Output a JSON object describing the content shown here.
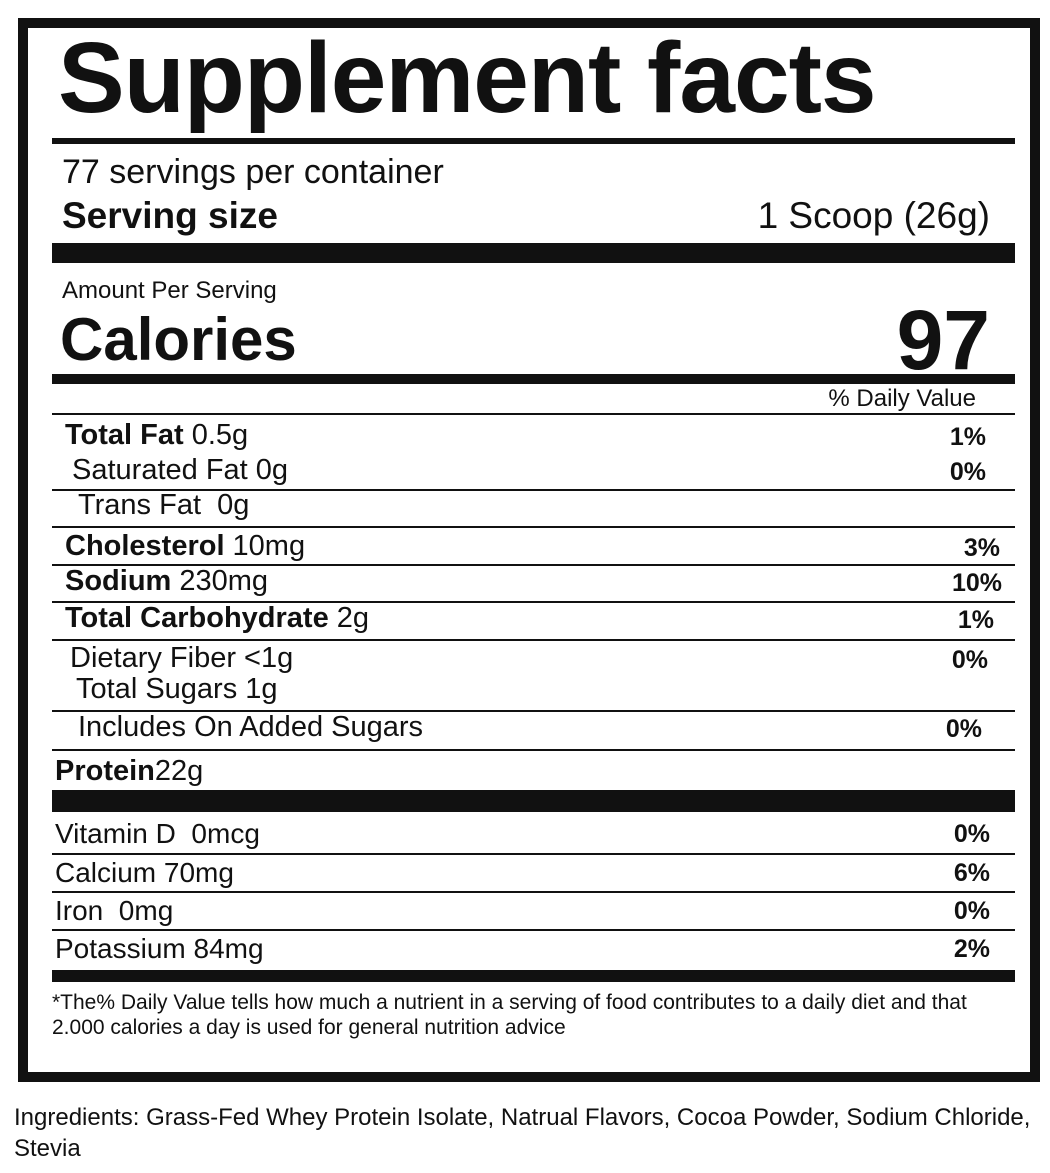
{
  "header": {
    "title": "Supplement facts",
    "servings": "77 servings per container",
    "serving_size_label": "Serving size",
    "serving_size_value": "1 Scoop (26g)"
  },
  "calories": {
    "amount_label": "Amount Per Serving",
    "label": "Calories",
    "value": "97"
  },
  "daily_value_header": "% Daily Value",
  "nutrients": [
    {
      "label": "Total Fat",
      "amount": "0.5g",
      "dv": "1%"
    },
    {
      "label": "Saturated Fat 0g",
      "dv": "0%"
    },
    {
      "label": "Trans Fat  0g"
    },
    {
      "label": "Cholesterol",
      "amount": "10mg",
      "dv": "3%"
    },
    {
      "label": "Sodium",
      "amount": "230mg",
      "dv": "10%"
    },
    {
      "label": "Total Carbohydrate",
      "amount": "2g",
      "dv": "1%"
    },
    {
      "label": "Dietary Fiber <1g",
      "dv": "0%"
    },
    {
      "label": "Total Sugars 1g"
    },
    {
      "label": "Includes On Added Sugars",
      "dv": "0%"
    },
    {
      "label": "Protein",
      "amount": "22g"
    }
  ],
  "vitamins": [
    {
      "label": "Vitamin D  0mcg",
      "dv": "0%"
    },
    {
      "label": "Calcium 70mg",
      "dv": "6%"
    },
    {
      "label": "Iron  0mg",
      "dv": "0%"
    },
    {
      "label": "Potassium 84mg",
      "dv": "2%"
    }
  ],
  "footnote": "*The% Daily Value tells how much a nutrient in a serving of food contributes to a daily diet and that 2.000 calories a day is used for general nutrition advice",
  "ingredients": "Ingredients: Grass-Fed Whey Protein Isolate, Natrual Flavors, Cocoa Powder, Sodium Chloride, Stevia"
}
